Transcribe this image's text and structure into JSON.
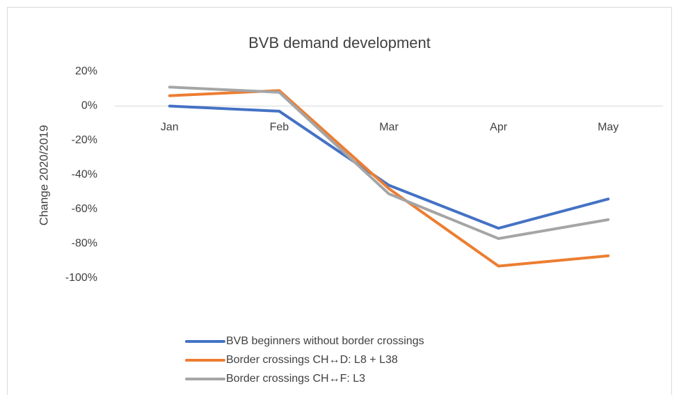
{
  "chart_data": {
    "type": "line",
    "title": "BVB demand development",
    "y_label": "Change 2020/2019",
    "categories": [
      "Jan",
      "Feb",
      "Mar",
      "Apr",
      "May"
    ],
    "series": [
      {
        "name": "BVB beginners without border crossings",
        "color": "#4472c4",
        "values": [
          0,
          -3,
          -46,
          -71,
          -54
        ]
      },
      {
        "name": "Border crossings CH↔D: L8 + L38",
        "color": "#ed7d31",
        "values": [
          6,
          9,
          -48,
          -93,
          -87
        ]
      },
      {
        "name": "Border crossings CH↔F: L3",
        "color": "#a5a5a5",
        "values": [
          11,
          8,
          -51,
          -77,
          -66
        ]
      }
    ],
    "ylim": [
      -100,
      20
    ],
    "yticks": [
      {
        "value": -100,
        "label": "-100%"
      },
      {
        "value": -80,
        "label": "-80%"
      },
      {
        "value": -60,
        "label": "-60%"
      },
      {
        "value": -40,
        "label": "-40%"
      },
      {
        "value": -20,
        "label": "-20%"
      },
      {
        "value": 0,
        "label": "0%"
      },
      {
        "value": 20,
        "label": "20%"
      }
    ],
    "grid": false,
    "legend": "bottom"
  }
}
